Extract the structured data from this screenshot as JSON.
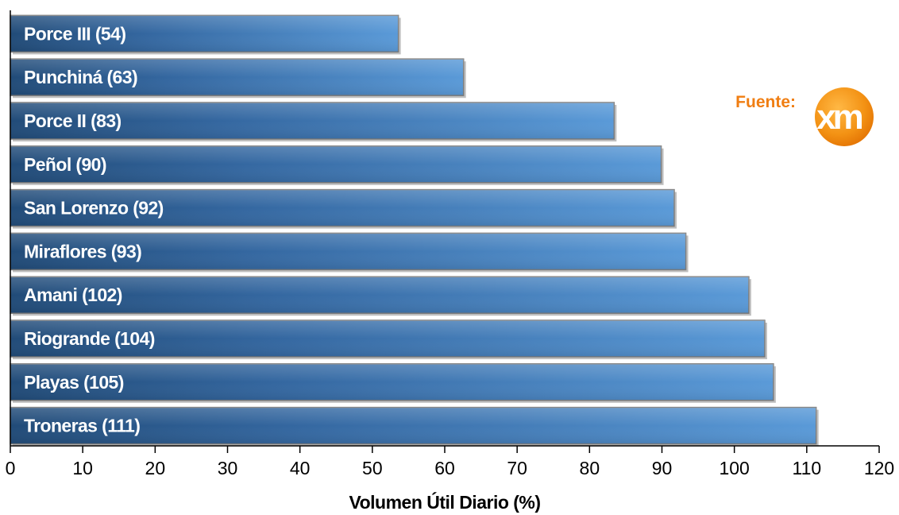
{
  "chart_data": {
    "type": "bar",
    "orientation": "horizontal",
    "categories": [
      "Porce III (54)",
      "Punchiná (63)",
      "Porce II (83)",
      "Peñol (90)",
      "San Lorenzo (92)",
      "Miraflores (93)",
      "Amani (102)",
      "Riogrande (104)",
      "Playas (105)",
      "Troneras (111)"
    ],
    "values": [
      53.6,
      62.6,
      83.4,
      89.9,
      91.7,
      93.3,
      102.0,
      104.2,
      105.4,
      111.3
    ],
    "xlabel": "Volumen Útil Diario (%)",
    "ylabel": "",
    "xlim": [
      0,
      120
    ],
    "xticks": [
      "0",
      "10",
      "20",
      "30",
      "40",
      "50",
      "60",
      "70",
      "80",
      "90",
      "100",
      "110",
      "120"
    ],
    "grid": false,
    "legend": "none",
    "bar_color_dark": "#1f4e79",
    "bar_color_light": "#5b9bd5"
  },
  "source": {
    "label": "Fuente:",
    "logo_text": "xm",
    "logo_color": "#f39c12"
  }
}
